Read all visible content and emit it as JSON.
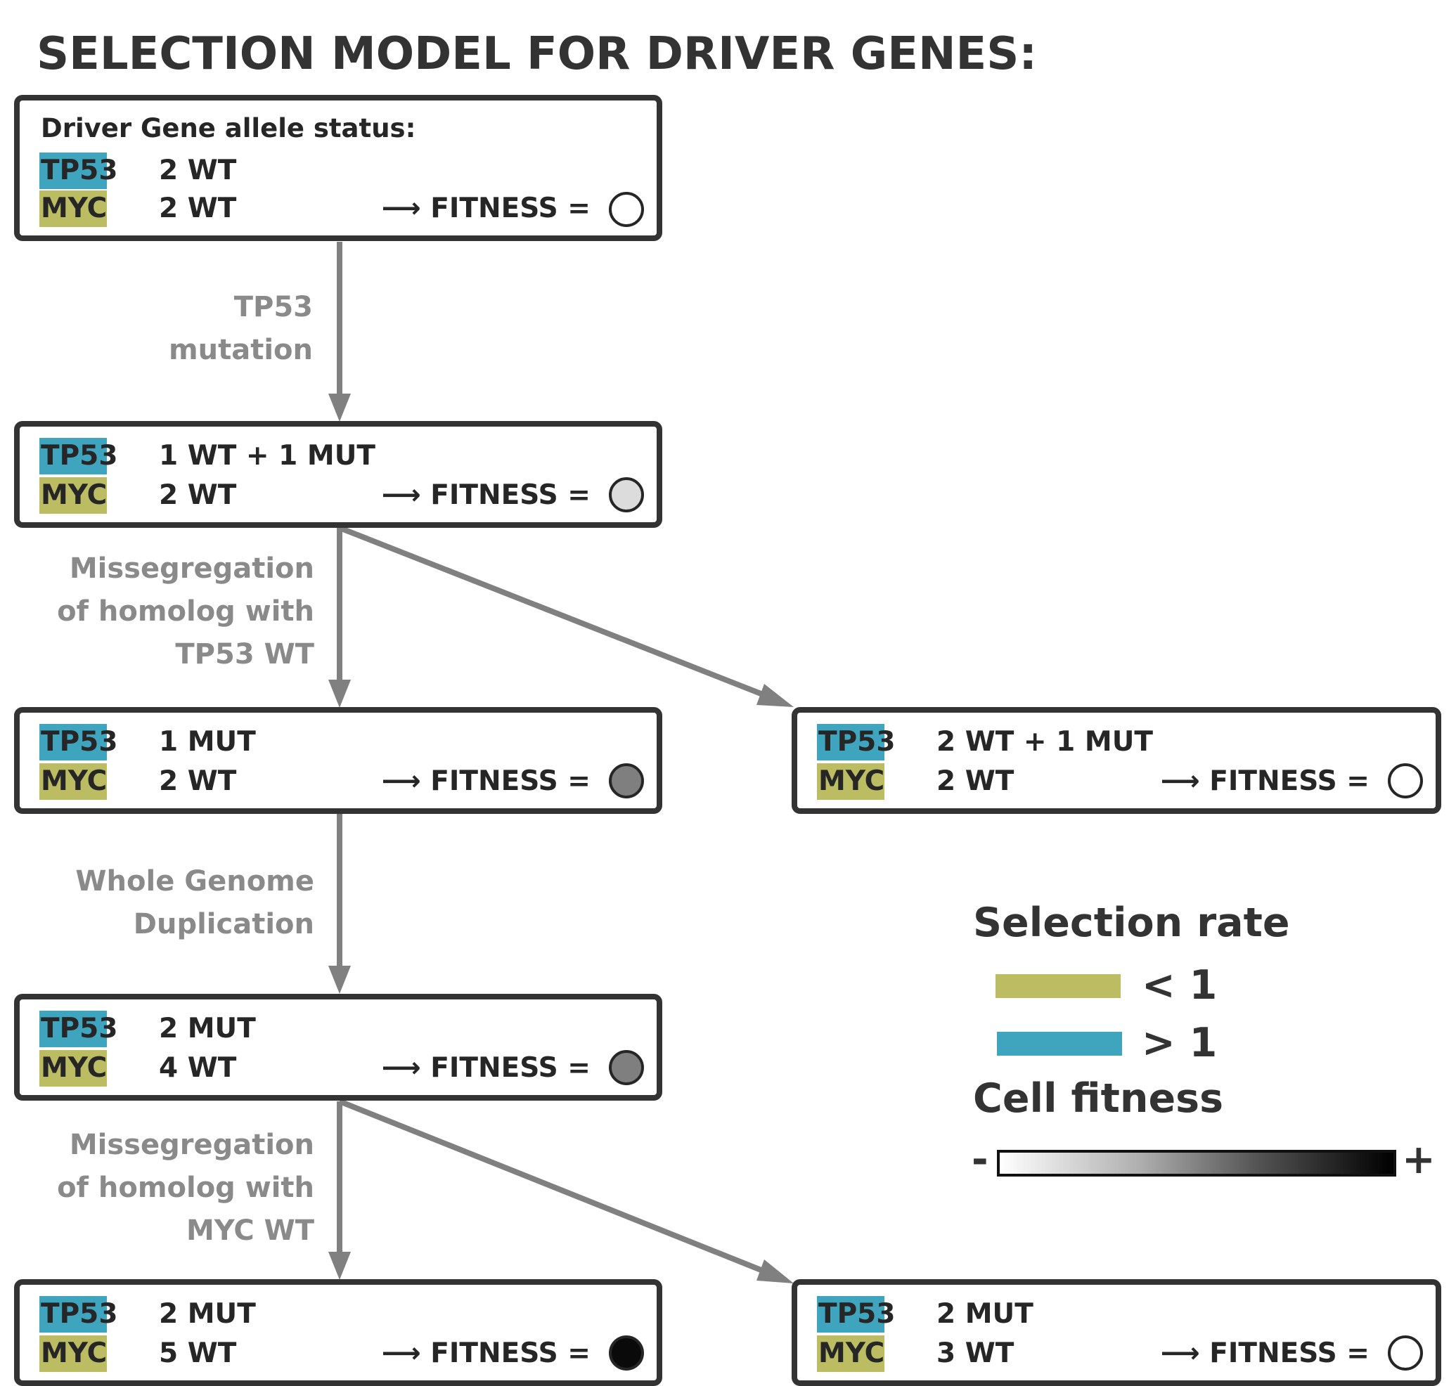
{
  "title": "SELECTION MODEL FOR DRIVER GENES:",
  "colors": {
    "tp53_highlight": "#3fa5bf",
    "myc_highlight": "#bcbc63",
    "box_border": "#333333",
    "arrow": "#808080",
    "edge_label": "#8a8a8a"
  },
  "nodes": {
    "n1": {
      "header": "Driver Gene allele status:",
      "gene1": "TP53",
      "status1": "2 WT",
      "gene2": "MYC",
      "status2": "2 WT",
      "fitness_label": "⟶ FITNESS =",
      "fitness_color": "#ffffff"
    },
    "n2": {
      "gene1": "TP53",
      "status1": "1 WT + 1 MUT",
      "gene2": "MYC",
      "status2": "2 WT",
      "fitness_label": "⟶ FITNESS =",
      "fitness_color": "#dcdcdc"
    },
    "n3": {
      "gene1": "TP53",
      "status1": "1 MUT",
      "gene2": "MYC",
      "status2": "2 WT",
      "fitness_label": "⟶ FITNESS =",
      "fitness_color": "#7f7f7f"
    },
    "n4": {
      "gene1": "TP53",
      "status1": "2 WT + 1 MUT",
      "gene2": "MYC",
      "status2": "2 WT",
      "fitness_label": "⟶ FITNESS =",
      "fitness_color": "#ffffff"
    },
    "n5": {
      "gene1": "TP53",
      "status1": "2 MUT",
      "gene2": "MYC",
      "status2": "4 WT",
      "fitness_label": "⟶ FITNESS =",
      "fitness_color": "#7f7f7f"
    },
    "n6": {
      "gene1": "TP53",
      "status1": "2 MUT",
      "gene2": "MYC",
      "status2": "5 WT",
      "fitness_label": "⟶ FITNESS =",
      "fitness_color": "#0a0a0a"
    },
    "n7": {
      "gene1": "TP53",
      "status1": "2 MUT",
      "gene2": "MYC",
      "status2": "3 WT",
      "fitness_label": "⟶ FITNESS =",
      "fitness_color": "#ffffff"
    }
  },
  "edges": {
    "e1": {
      "line1": "TP53",
      "line2": "mutation"
    },
    "e2": {
      "line1": "Missegregation",
      "line2": "of homolog with",
      "line3": "TP53 WT"
    },
    "e3": {
      "line1": "Whole Genome",
      "line2": "Duplication"
    },
    "e4": {
      "line1": "Missegregation",
      "line2": "of homolog with",
      "line3": "MYC WT"
    }
  },
  "legend": {
    "selection_title": "Selection rate",
    "less_label": "< 1",
    "greater_label": "> 1",
    "fitness_title": "Cell fitness",
    "minus": "-",
    "plus": "+"
  }
}
